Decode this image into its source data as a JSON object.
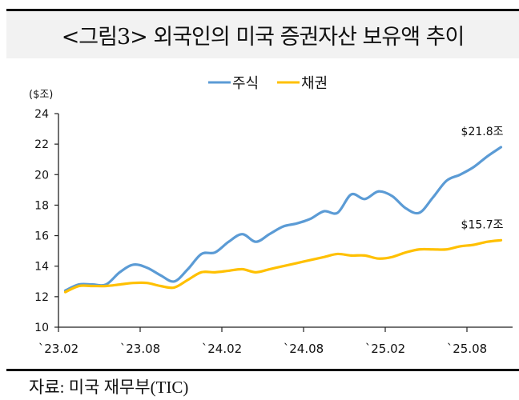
{
  "title": "<그림3> 외국인의 미국 증권자산 보유액 추이",
  "source": "자료: 미국 재무부(TIC)",
  "chart_data": {
    "type": "line",
    "title": "<그림3> 외국인의 미국 증권자산 보유액 추이",
    "ylabel": "($조)",
    "xlabel": "",
    "ylim": [
      10,
      24
    ],
    "yticks": [
      "10",
      "12",
      "14",
      "16",
      "18",
      "20",
      "22",
      "24"
    ],
    "xtick_labels": [
      "`23.02",
      "`23.08",
      "`24.02",
      "`24.08",
      "`25.02",
      "`25.08"
    ],
    "legend_position": "top-center",
    "x": [
      "23.02",
      "23.03",
      "23.04",
      "23.05",
      "23.06",
      "23.07",
      "23.08",
      "23.09",
      "23.10",
      "23.11",
      "23.12",
      "24.01",
      "24.02",
      "24.03",
      "24.04",
      "24.05",
      "24.06",
      "24.07",
      "24.08",
      "24.09",
      "24.10",
      "24.11",
      "24.12",
      "25.01",
      "25.02",
      "25.03",
      "25.04",
      "25.05",
      "25.06",
      "25.07",
      "25.08",
      "25.09",
      "25.10"
    ],
    "series": [
      {
        "name": "주식",
        "color": "#5b9bd5",
        "end_label": "$21.8조",
        "values": [
          12.4,
          12.8,
          12.8,
          12.8,
          13.6,
          14.1,
          13.9,
          13.4,
          13.0,
          13.8,
          14.8,
          14.9,
          15.6,
          16.1,
          15.6,
          16.1,
          16.6,
          16.8,
          17.1,
          17.6,
          17.5,
          18.7,
          18.4,
          18.9,
          18.6,
          17.8,
          17.5,
          18.5,
          19.6,
          20.0,
          20.5,
          21.2,
          21.8
        ]
      },
      {
        "name": "채권",
        "color": "#ffc000",
        "end_label": "$15.7조",
        "values": [
          12.3,
          12.7,
          12.7,
          12.7,
          12.8,
          12.9,
          12.9,
          12.7,
          12.6,
          13.1,
          13.6,
          13.6,
          13.7,
          13.8,
          13.6,
          13.8,
          14.0,
          14.2,
          14.4,
          14.6,
          14.8,
          14.7,
          14.7,
          14.5,
          14.6,
          14.9,
          15.1,
          15.1,
          15.1,
          15.3,
          15.4,
          15.6,
          15.7
        ]
      }
    ]
  }
}
